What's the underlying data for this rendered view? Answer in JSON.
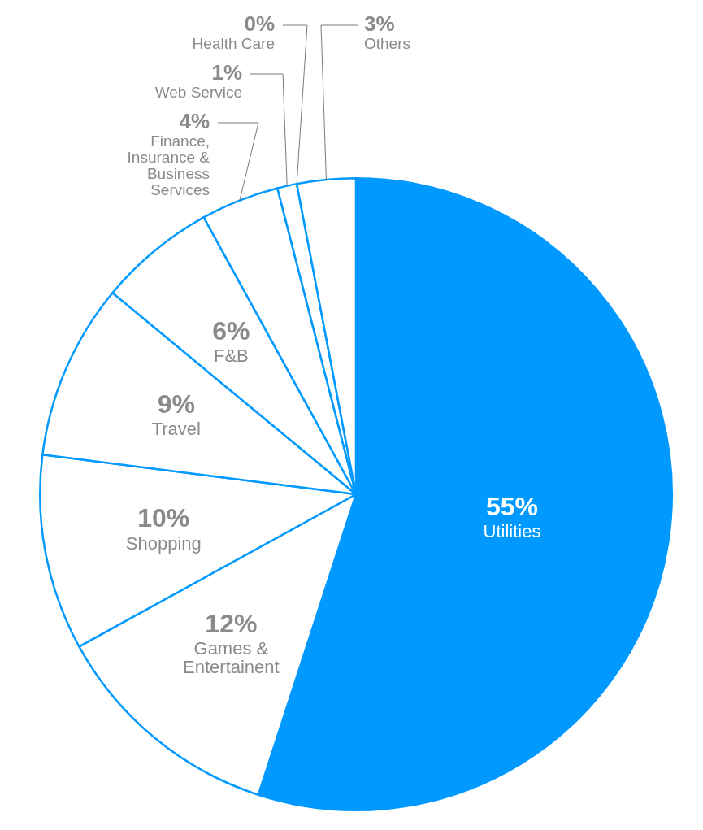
{
  "chart_data": {
    "type": "pie",
    "categories": [
      "Utilities",
      "Games & Entertainent",
      "Shopping",
      "Travel",
      "F&B",
      "Finance, Insurance & Business Services",
      "Web Service",
      "Health Care",
      "Others"
    ],
    "values": [
      55,
      12,
      10,
      9,
      6,
      4,
      1,
      0,
      3
    ],
    "colors": [
      "#0099ff",
      "#ffffff",
      "#ffffff",
      "#ffffff",
      "#ffffff",
      "#ffffff",
      "#ffffff",
      "#ffffff",
      "#ffffff"
    ],
    "value_labels": [
      "55%",
      "12%",
      "10%",
      "9%",
      "6%",
      "4%",
      "1%",
      "0%",
      "3%"
    ],
    "legend": false
  }
}
